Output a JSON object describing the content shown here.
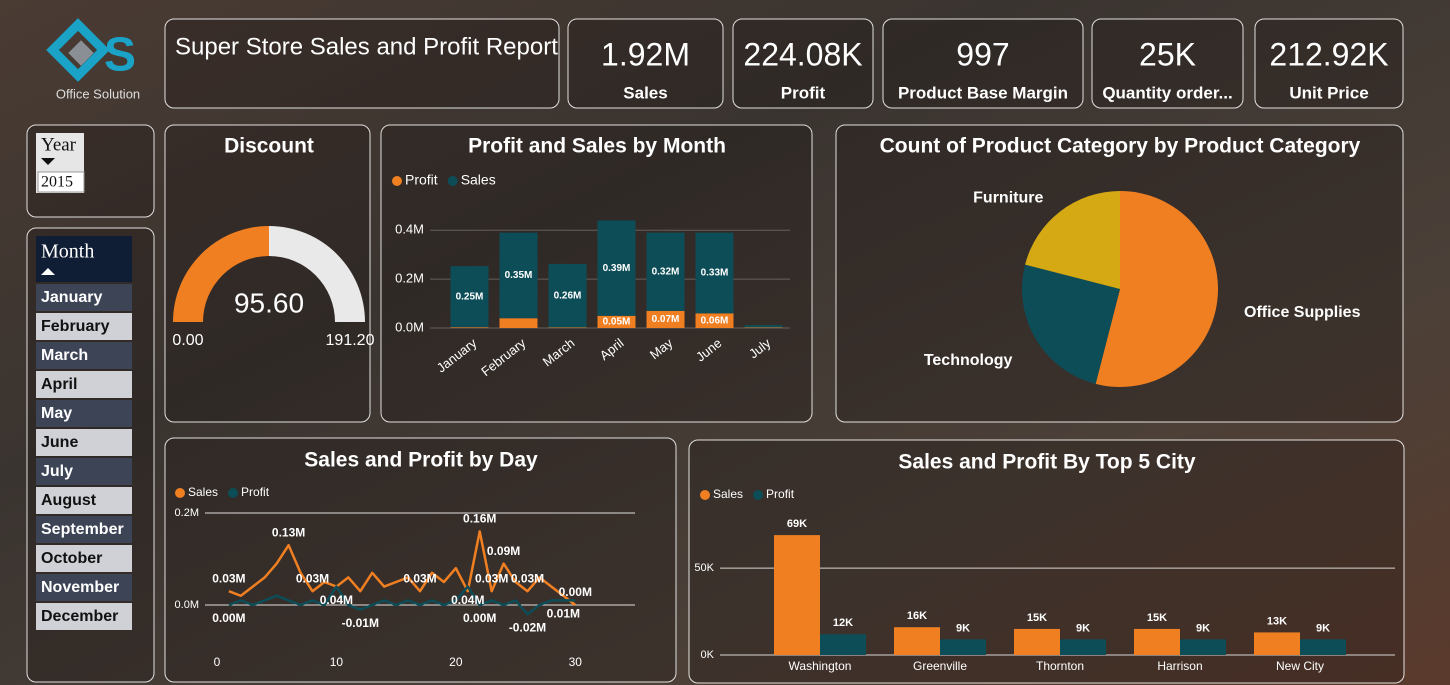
{
  "header": {
    "logo_text": "Office Solution",
    "title": "Super Store Sales and Profit Report"
  },
  "kpis": [
    {
      "value": "1.92M",
      "label": "Sales"
    },
    {
      "value": "224.08K",
      "label": "Profit"
    },
    {
      "value": "997",
      "label": "Product Base Margin"
    },
    {
      "value": "25K",
      "label": "Quantity order..."
    },
    {
      "value": "212.92K",
      "label": "Unit Price"
    }
  ],
  "slicers": {
    "year": {
      "title": "Year",
      "selected": "2015"
    },
    "month": {
      "title": "Month",
      "items": [
        "January",
        "February",
        "March",
        "April",
        "May",
        "June",
        "July",
        "August",
        "September",
        "October",
        "November",
        "December"
      ]
    }
  },
  "chart_data": [
    {
      "type": "gauge",
      "title": "Discount",
      "values": [
        95.6
      ],
      "value_labels": [
        "95.60"
      ],
      "ylim": [
        0,
        191.2
      ],
      "yticks": [
        {
          "value": 0,
          "label": "0.00"
        },
        {
          "value": 191.2,
          "label": "191.20"
        }
      ],
      "color": "#f07f22",
      "track_color": "#e9e9e9"
    },
    {
      "type": "bar",
      "stacked": true,
      "title": "Profit and Sales by Month",
      "categories": [
        "January",
        "February",
        "March",
        "April",
        "May",
        "June",
        "July"
      ],
      "series": [
        {
          "name": "Profit",
          "color": "#f07f22",
          "values": [
            0.003,
            0.04,
            0.002,
            0.05,
            0.07,
            0.06,
            0.002
          ],
          "value_labels": [
            null,
            null,
            null,
            "0.05M",
            "0.07M",
            "0.06M",
            null
          ]
        },
        {
          "name": "Sales",
          "color": "#0d4d57",
          "values": [
            0.25,
            0.35,
            0.26,
            0.39,
            0.32,
            0.33,
            0.01
          ],
          "value_labels": [
            "0.25M",
            "0.35M",
            "0.26M",
            "0.39M",
            "0.32M",
            "0.33M",
            null
          ]
        }
      ],
      "ylim": [
        0,
        0.45
      ],
      "yticks": [
        {
          "value": 0,
          "label": "0.0M"
        },
        {
          "value": 0.2,
          "label": "0.2M"
        },
        {
          "value": 0.4,
          "label": "0.4M"
        }
      ],
      "grid": true
    },
    {
      "type": "pie",
      "title": "Count of Product Category by Product Category",
      "categories": [
        "Office Supplies",
        "Technology",
        "Furniture"
      ],
      "values": [
        54,
        25,
        21
      ],
      "colors": [
        "#f07f22",
        "#0d4d57",
        "#d4a914"
      ]
    },
    {
      "type": "line",
      "title": "Sales and Profit by Day",
      "x": [
        1,
        2,
        3,
        4,
        5,
        6,
        7,
        8,
        9,
        10,
        11,
        12,
        13,
        14,
        15,
        16,
        17,
        18,
        19,
        20,
        21,
        22,
        23,
        24,
        25,
        26,
        27,
        28,
        29,
        30
      ],
      "series": [
        {
          "name": "Sales",
          "color": "#f07f22",
          "values": [
            0.03,
            0.02,
            0.04,
            0.06,
            0.09,
            0.13,
            0.07,
            0.03,
            0.05,
            0.04,
            0.06,
            0.03,
            0.07,
            0.04,
            0.05,
            0.06,
            0.03,
            0.07,
            0.05,
            0.08,
            0.03,
            0.16,
            0.03,
            0.09,
            0.05,
            0.03,
            0.06,
            0.04,
            0.02,
            0.0
          ],
          "value_labels": [
            "0.03M",
            null,
            null,
            null,
            null,
            "0.13M",
            null,
            "0.03M",
            null,
            null,
            null,
            null,
            null,
            null,
            null,
            null,
            "0.03M",
            null,
            null,
            null,
            null,
            "0.16M",
            "0.03M",
            "0.09M",
            null,
            "0.03M",
            null,
            null,
            null,
            "0.00M"
          ]
        },
        {
          "name": "Profit",
          "color": "#0d4d57",
          "values": [
            0.0,
            0.01,
            0.0,
            0.01,
            0.02,
            0.01,
            0.0,
            0.01,
            0.0,
            0.04,
            0.0,
            -0.01,
            0.0,
            0.01,
            0.0,
            0.01,
            0.0,
            0.01,
            0.0,
            0.01,
            0.04,
            0.0,
            0.01,
            0.0,
            0.01,
            -0.02,
            0.0,
            0.01,
            0.01,
            0.01
          ],
          "value_labels": [
            "0.00M",
            null,
            null,
            null,
            null,
            null,
            null,
            null,
            null,
            "0.04M",
            null,
            "-0.01M",
            null,
            null,
            null,
            null,
            null,
            null,
            null,
            null,
            "0.04M",
            "0.00M",
            null,
            null,
            null,
            "-0.02M",
            null,
            null,
            "0.01M",
            null
          ]
        }
      ],
      "xlim": [
        -1,
        35
      ],
      "xticks": [
        0,
        10,
        20,
        30
      ],
      "ylim": [
        -0.05,
        0.2
      ],
      "yticks": [
        {
          "value": 0,
          "label": "0.0M"
        },
        {
          "value": 0.2,
          "label": "0.2M"
        }
      ],
      "grid": true
    },
    {
      "type": "bar",
      "stacked": false,
      "title": "Sales and Profit By Top 5 City",
      "categories": [
        "Washington",
        "Greenville",
        "Thornton",
        "Harrison",
        "New City"
      ],
      "series": [
        {
          "name": "Sales",
          "color": "#f07f22",
          "values": [
            69000,
            16000,
            15000,
            15000,
            13000
          ],
          "value_labels": [
            "69K",
            "16K",
            "15K",
            "15K",
            "13K"
          ]
        },
        {
          "name": "Profit",
          "color": "#0d4d57",
          "values": [
            12000,
            9000,
            9000,
            9000,
            9000
          ],
          "value_labels": [
            "12K",
            "9K",
            "9K",
            "9K",
            "9K"
          ]
        }
      ],
      "ylim": [
        0,
        80000
      ],
      "yticks": [
        {
          "value": 0,
          "label": "0K"
        },
        {
          "value": 50000,
          "label": "50K"
        }
      ],
      "grid": true
    }
  ]
}
